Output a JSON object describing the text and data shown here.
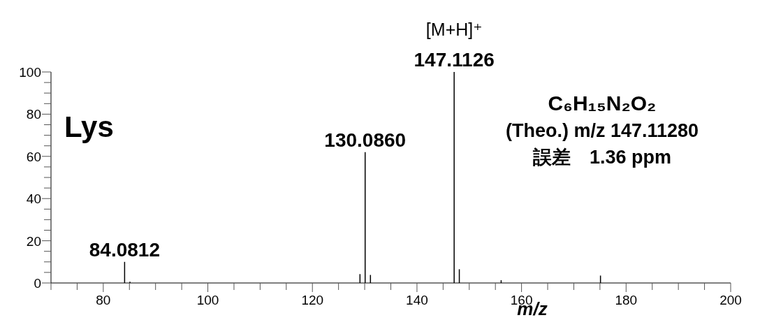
{
  "chart_data": {
    "type": "bar",
    "title": "Lys",
    "xlabel": "m/z",
    "x": [
      84.0812,
      85.1,
      129.1,
      130.086,
      131.1,
      147.1126,
      148.1,
      156.1,
      175.1
    ],
    "values": [
      10,
      0.6,
      4.2,
      62,
      3.8,
      100,
      6.5,
      1.3,
      3.5
    ],
    "color": "#000000",
    "xlim": [
      70,
      200
    ],
    "xticks": [
      {
        "value": 70,
        "label": null
      },
      {
        "value": 75,
        "label": null
      },
      80,
      {
        "value": 85,
        "label": null
      },
      {
        "value": 90,
        "label": null
      },
      {
        "value": 95,
        "label": null
      },
      100,
      {
        "value": 105,
        "label": null
      },
      {
        "value": 110,
        "label": null
      },
      {
        "value": 115,
        "label": null
      },
      120,
      {
        "value": 125,
        "label": null
      },
      {
        "value": 130,
        "label": null
      },
      {
        "value": 135,
        "label": null
      },
      140,
      {
        "value": 145,
        "label": null
      },
      {
        "value": 150,
        "label": null
      },
      {
        "value": 155,
        "label": null
      },
      160,
      {
        "value": 165,
        "label": null
      },
      {
        "value": 170,
        "label": null
      },
      {
        "value": 175,
        "label": null
      },
      180,
      {
        "value": 185,
        "label": null
      },
      {
        "value": 190,
        "label": null
      },
      {
        "value": 195,
        "label": null
      },
      200
    ],
    "ylim": [
      0,
      100
    ],
    "yticks": [
      0,
      {
        "value": 5,
        "label": null
      },
      {
        "value": 10,
        "label": null
      },
      {
        "value": 15,
        "label": null
      },
      20,
      {
        "value": 25,
        "label": null
      },
      {
        "value": 30,
        "label": null
      },
      {
        "value": 35,
        "label": null
      },
      40,
      {
        "value": 45,
        "label": null
      },
      {
        "value": 50,
        "label": null
      },
      {
        "value": 55,
        "label": null
      },
      60,
      {
        "value": 65,
        "label": null
      },
      {
        "value": 70,
        "label": null
      },
      {
        "value": 75,
        "label": null
      },
      80,
      {
        "value": 85,
        "label": null
      },
      {
        "value": 90,
        "label": null
      },
      {
        "value": 95,
        "label": null
      },
      100
    ],
    "grid": false,
    "annotations": [
      {
        "text": "84.0812",
        "x": 84.0812,
        "y": 10
      },
      {
        "text": "130.0860",
        "x": 130.086,
        "y": 62
      },
      {
        "text": "147.1126",
        "x": 147.1126,
        "y": 100
      },
      {
        "text": "[M+H]⁺",
        "x": 147.1126,
        "y": 100
      },
      "C₆H₁₅N₂O₂",
      "(Theo.) m/z 147.11280",
      "誤差　1.36 ppm"
    ]
  }
}
